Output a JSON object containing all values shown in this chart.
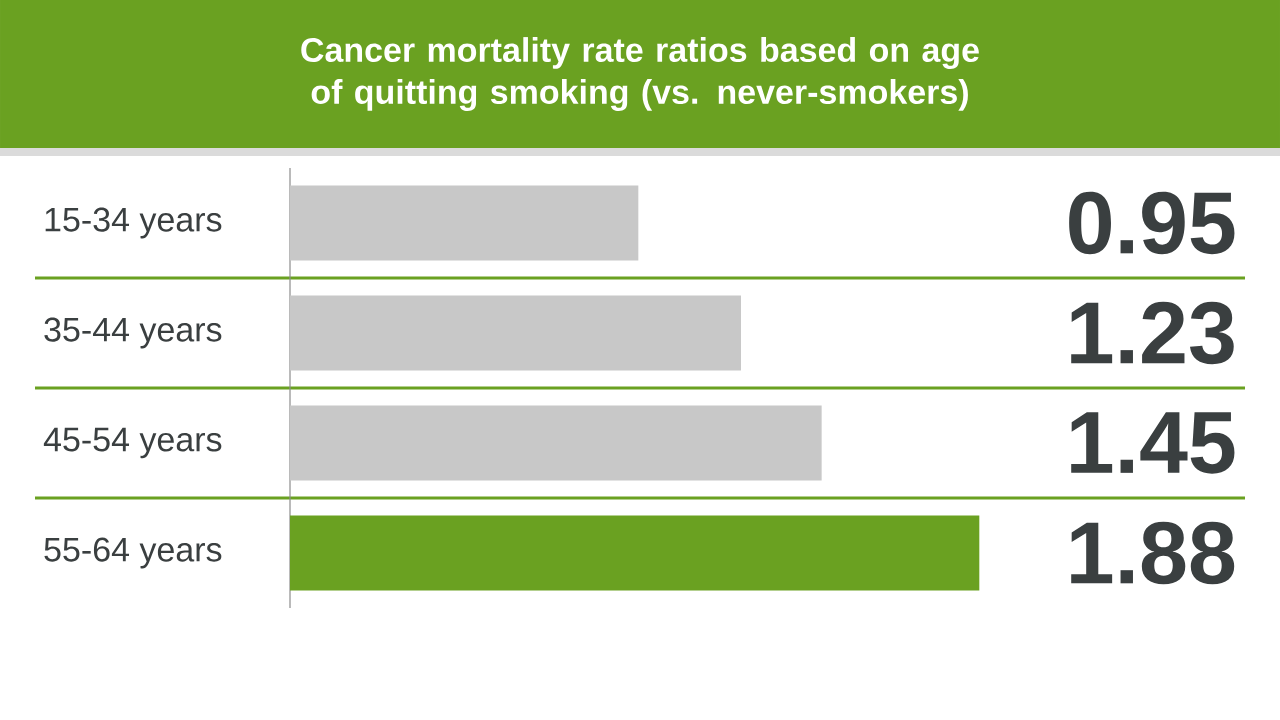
{
  "chart_data": {
    "type": "bar",
    "orientation": "horizontal",
    "title": "Cancer mortality rate ratios based on age of quitting smoking (vs. never-smokers)",
    "categories": [
      "15-34 years",
      "35-44 years",
      "45-54 years",
      "55-64 years"
    ],
    "values": [
      0.95,
      1.23,
      1.45,
      1.88
    ],
    "colors": [
      "#c8c8c8",
      "#c8c8c8",
      "#c8c8c8",
      "#6aa121"
    ],
    "data_labels": true
  }
}
